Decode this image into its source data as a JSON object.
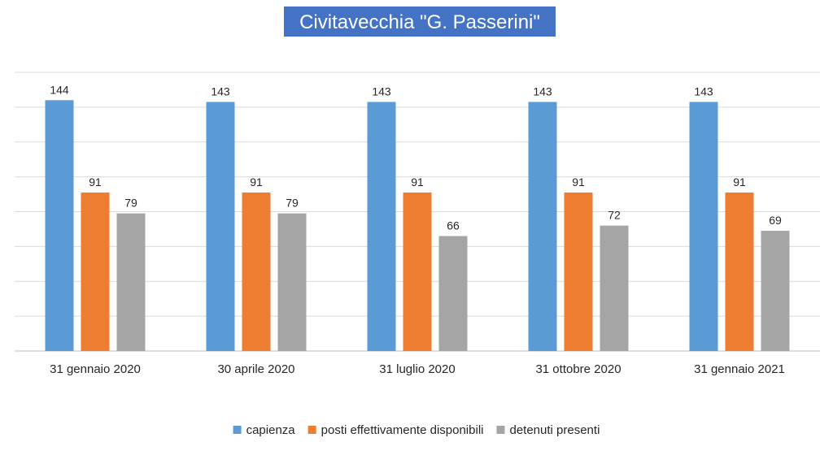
{
  "chart_data": {
    "type": "bar",
    "title": "Civitavecchia \"G. Passerini\"",
    "categories": [
      "31 gennaio 2020",
      "30 aprile 2020",
      "31 luglio 2020",
      "31 ottobre 2020",
      "31 gennaio 2021"
    ],
    "series": [
      {
        "name": "capienza",
        "color": "#5b9bd5",
        "values": [
          144,
          143,
          143,
          143,
          143
        ]
      },
      {
        "name": "posti effettivamente disponibili",
        "color": "#ed7d31",
        "values": [
          91,
          91,
          91,
          91,
          91
        ]
      },
      {
        "name": "detenuti presenti",
        "color": "#a5a5a5",
        "values": [
          79,
          79,
          66,
          72,
          69
        ]
      }
    ],
    "ylim": [
      0,
      160
    ],
    "grid": true,
    "legend_position": "bottom",
    "data_labels": true,
    "title_background": "#4472c4",
    "title_color": "#ffffff"
  }
}
